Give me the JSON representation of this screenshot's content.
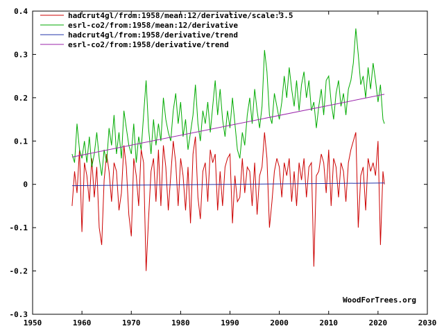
{
  "chart_data": {
    "type": "line",
    "title": "",
    "xlabel": "",
    "ylabel": "",
    "xlim": [
      1950,
      2030
    ],
    "ylim": [
      -0.3,
      0.4
    ],
    "x_ticks": [
      1950,
      1960,
      1970,
      1980,
      1990,
      2000,
      2010,
      2020,
      2030
    ],
    "x_tick_labels": [
      "1950",
      "1960",
      "1970",
      "1980",
      "1990",
      "2000",
      "2010",
      "2020",
      "2030"
    ],
    "y_ticks": [
      -0.3,
      -0.2,
      -0.1,
      0,
      0.1,
      0.2,
      0.3,
      0.4
    ],
    "y_tick_labels": [
      "-0.3",
      "-0.2",
      "-0.1",
      "0",
      "0.1",
      "0.2",
      "0.3",
      "0.4"
    ],
    "grid": false,
    "legend_position": "top-left",
    "series": [
      {
        "name": "hadcrut4gl/from:1958/mean:12/derivative/scale:3.5",
        "color": "#cc0000",
        "x": [
          1958.0,
          1958.5,
          1959.0,
          1959.5,
          1960.0,
          1960.5,
          1961.0,
          1961.5,
          1962.0,
          1962.5,
          1963.0,
          1963.5,
          1964.0,
          1964.5,
          1965.0,
          1965.5,
          1966.0,
          1966.5,
          1967.0,
          1967.5,
          1968.0,
          1968.5,
          1969.0,
          1969.5,
          1970.0,
          1970.5,
          1971.0,
          1971.5,
          1972.0,
          1972.5,
          1973.0,
          1973.5,
          1974.0,
          1974.5,
          1975.0,
          1975.5,
          1976.0,
          1976.5,
          1977.0,
          1977.5,
          1978.0,
          1978.5,
          1979.0,
          1979.5,
          1980.0,
          1980.5,
          1981.0,
          1981.5,
          1982.0,
          1982.5,
          1983.0,
          1983.5,
          1984.0,
          1984.5,
          1985.0,
          1985.5,
          1986.0,
          1986.5,
          1987.0,
          1987.5,
          1988.0,
          1988.5,
          1989.0,
          1989.5,
          1990.0,
          1990.5,
          1991.0,
          1991.5,
          1992.0,
          1992.5,
          1993.0,
          1993.5,
          1994.0,
          1994.5,
          1995.0,
          1995.5,
          1996.0,
          1996.5,
          1997.0,
          1997.5,
          1998.0,
          1998.5,
          1999.0,
          1999.5,
          2000.0,
          2000.5,
          2001.0,
          2001.5,
          2002.0,
          2002.5,
          2003.0,
          2003.5,
          2004.0,
          2004.5,
          2005.0,
          2005.5,
          2006.0,
          2006.5,
          2007.0,
          2007.5,
          2008.0,
          2008.5,
          2009.0,
          2009.5,
          2010.0,
          2010.5,
          2011.0,
          2011.5,
          2012.0,
          2012.5,
          2013.0,
          2013.5,
          2014.0,
          2014.5,
          2015.0,
          2015.5,
          2016.0,
          2016.5,
          2017.0,
          2017.5,
          2018.0,
          2018.5,
          2019.0,
          2019.5,
          2020.0,
          2020.5,
          2021.0,
          2021.3
        ],
        "values": [
          -0.05,
          0.03,
          -0.02,
          0.08,
          -0.11,
          0.05,
          0.02,
          -0.04,
          0.06,
          -0.03,
          0.04,
          -0.1,
          -0.14,
          0.01,
          0.07,
          0.03,
          -0.04,
          0.05,
          0.03,
          -0.06,
          -0.02,
          0.09,
          0.04,
          -0.07,
          -0.12,
          0.06,
          0.02,
          -0.05,
          0.08,
          0.05,
          -0.2,
          -0.08,
          0.03,
          0.06,
          -0.04,
          0.08,
          -0.05,
          0.09,
          0.04,
          -0.06,
          0.02,
          0.1,
          0.05,
          -0.05,
          0.06,
          0.02,
          -0.06,
          0.04,
          -0.09,
          0.07,
          0.11,
          -0.03,
          -0.08,
          0.03,
          0.05,
          -0.04,
          0.08,
          0.05,
          0.07,
          -0.06,
          0.03,
          -0.05,
          0.04,
          0.06,
          0.07,
          -0.09,
          0.02,
          -0.04,
          -0.03,
          0.06,
          -0.02,
          0.04,
          0.03,
          -0.05,
          0.05,
          -0.07,
          0.02,
          0.04,
          0.12,
          0.06,
          -0.1,
          -0.04,
          0.03,
          0.06,
          0.04,
          -0.03,
          0.05,
          0.02,
          0.06,
          -0.04,
          0.03,
          -0.05,
          0.05,
          0.01,
          0.06,
          -0.03,
          0.04,
          0.05,
          -0.19,
          0.02,
          0.03,
          0.07,
          0.05,
          -0.02,
          0.08,
          -0.05,
          0.06,
          0.04,
          -0.03,
          0.05,
          0.03,
          -0.04,
          0.05,
          0.08,
          0.1,
          0.12,
          -0.1,
          0.02,
          0.04,
          -0.06,
          0.06,
          0.03,
          0.05,
          0.02,
          0.1,
          -0.14,
          0.03,
          0.0
        ]
      },
      {
        "name": "esrl-co2/from:1958/mean:12/derivative",
        "color": "#00aa00",
        "x": [
          1958.0,
          1958.5,
          1959.0,
          1959.5,
          1960.0,
          1960.5,
          1961.0,
          1961.5,
          1962.0,
          1962.5,
          1963.0,
          1963.5,
          1964.0,
          1964.5,
          1965.0,
          1965.5,
          1966.0,
          1966.5,
          1967.0,
          1967.5,
          1968.0,
          1968.5,
          1969.0,
          1969.5,
          1970.0,
          1970.5,
          1971.0,
          1971.5,
          1972.0,
          1972.5,
          1973.0,
          1973.5,
          1974.0,
          1974.5,
          1975.0,
          1975.5,
          1976.0,
          1976.5,
          1977.0,
          1977.5,
          1978.0,
          1978.5,
          1979.0,
          1979.5,
          1980.0,
          1980.5,
          1981.0,
          1981.5,
          1982.0,
          1982.5,
          1983.0,
          1983.5,
          1984.0,
          1984.5,
          1985.0,
          1985.5,
          1986.0,
          1986.5,
          1987.0,
          1987.5,
          1988.0,
          1988.5,
          1989.0,
          1989.5,
          1990.0,
          1990.5,
          1991.0,
          1991.5,
          1992.0,
          1992.5,
          1993.0,
          1993.5,
          1994.0,
          1994.5,
          1995.0,
          1995.5,
          1996.0,
          1996.5,
          1997.0,
          1997.5,
          1998.0,
          1998.5,
          1999.0,
          1999.5,
          2000.0,
          2000.5,
          2001.0,
          2001.5,
          2002.0,
          2002.5,
          2003.0,
          2003.5,
          2004.0,
          2004.5,
          2005.0,
          2005.5,
          2006.0,
          2006.5,
          2007.0,
          2007.5,
          2008.0,
          2008.5,
          2009.0,
          2009.5,
          2010.0,
          2010.5,
          2011.0,
          2011.5,
          2012.0,
          2012.5,
          2013.0,
          2013.5,
          2014.0,
          2014.5,
          2015.0,
          2015.5,
          2016.0,
          2016.5,
          2017.0,
          2017.5,
          2018.0,
          2018.5,
          2019.0,
          2019.5,
          2020.0,
          2020.5,
          2021.0,
          2021.3
        ],
        "values": [
          0.07,
          0.05,
          0.14,
          0.08,
          0.06,
          0.1,
          0.05,
          0.11,
          0.04,
          0.07,
          0.12,
          0.06,
          0.02,
          0.08,
          0.05,
          0.13,
          0.09,
          0.16,
          0.07,
          0.12,
          0.06,
          0.17,
          0.13,
          0.09,
          0.07,
          0.14,
          0.05,
          0.11,
          0.08,
          0.16,
          0.24,
          0.13,
          0.07,
          0.15,
          0.09,
          0.14,
          0.1,
          0.2,
          0.15,
          0.12,
          0.1,
          0.17,
          0.21,
          0.14,
          0.19,
          0.11,
          0.15,
          0.08,
          0.12,
          0.16,
          0.23,
          0.14,
          0.1,
          0.17,
          0.14,
          0.19,
          0.12,
          0.18,
          0.24,
          0.16,
          0.22,
          0.15,
          0.11,
          0.17,
          0.13,
          0.2,
          0.14,
          0.08,
          0.06,
          0.12,
          0.09,
          0.16,
          0.2,
          0.14,
          0.22,
          0.17,
          0.13,
          0.18,
          0.31,
          0.26,
          0.16,
          0.14,
          0.21,
          0.18,
          0.15,
          0.19,
          0.25,
          0.2,
          0.27,
          0.22,
          0.18,
          0.24,
          0.17,
          0.23,
          0.26,
          0.2,
          0.24,
          0.17,
          0.19,
          0.13,
          0.18,
          0.22,
          0.16,
          0.24,
          0.25,
          0.19,
          0.15,
          0.21,
          0.24,
          0.18,
          0.21,
          0.16,
          0.22,
          0.24,
          0.28,
          0.36,
          0.3,
          0.23,
          0.25,
          0.2,
          0.27,
          0.22,
          0.28,
          0.24,
          0.19,
          0.23,
          0.15,
          0.14
        ]
      },
      {
        "name": "hadcrut4gl/from:1958/derivative/trend",
        "color": "#2233aa",
        "x": [
          1958.0,
          2021.3
        ],
        "values": [
          -0.003,
          0.003
        ]
      },
      {
        "name": "esrl-co2/from:1958/derivative/trend",
        "color": "#9922aa",
        "x": [
          1958.0,
          2021.3
        ],
        "values": [
          0.063,
          0.208
        ]
      }
    ],
    "annotation": "WoodForTrees.org"
  }
}
